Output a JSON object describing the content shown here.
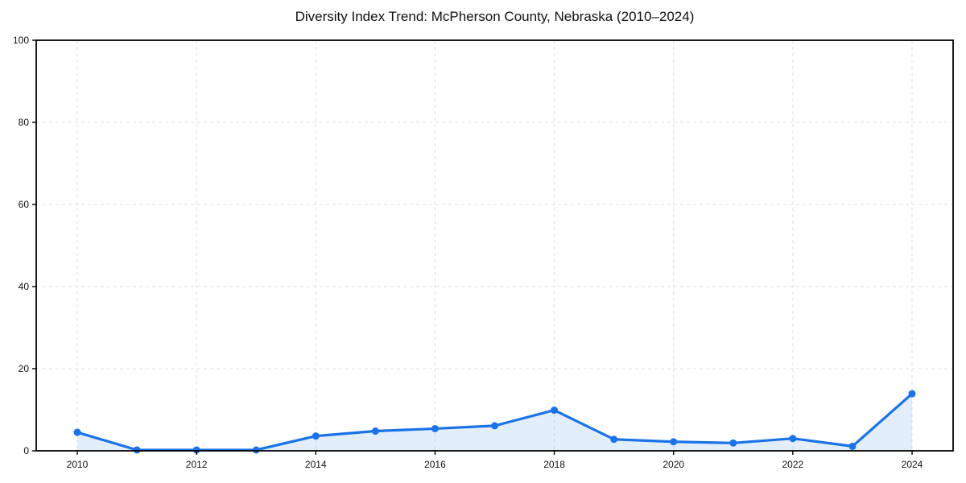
{
  "chart_data": {
    "type": "area",
    "title": "Diversity Index Trend: McPherson County, Nebraska (2010–2024)",
    "x": [
      2010,
      2011,
      2012,
      2013,
      2014,
      2015,
      2016,
      2017,
      2018,
      2019,
      2020,
      2021,
      2022,
      2023,
      2024
    ],
    "series": [
      {
        "name": "Diversity Index",
        "values": [
          4.5,
          0.2,
          0.2,
          0.2,
          3.6,
          4.8,
          5.4,
          6.1,
          9.9,
          2.8,
          2.2,
          1.9,
          3.0,
          1.1,
          13.9
        ]
      }
    ],
    "xlabel": "",
    "ylabel": "",
    "xlim": [
      2009.3,
      2024.7
    ],
    "ylim": [
      0,
      100
    ],
    "xticks": [
      2010,
      2012,
      2014,
      2016,
      2018,
      2020,
      2022,
      2024
    ],
    "yticks": [
      0,
      20,
      40,
      60,
      80,
      100
    ],
    "grid": true,
    "grid_style": "dashed",
    "grid_color": "#e0e0e0",
    "legend": "none",
    "line_color": "#1a73e8",
    "marker_color": "#1a73e8",
    "fill_color": "rgba(26,115,232,0.12)",
    "spine_color": "#000000",
    "text_color": "#111111"
  }
}
